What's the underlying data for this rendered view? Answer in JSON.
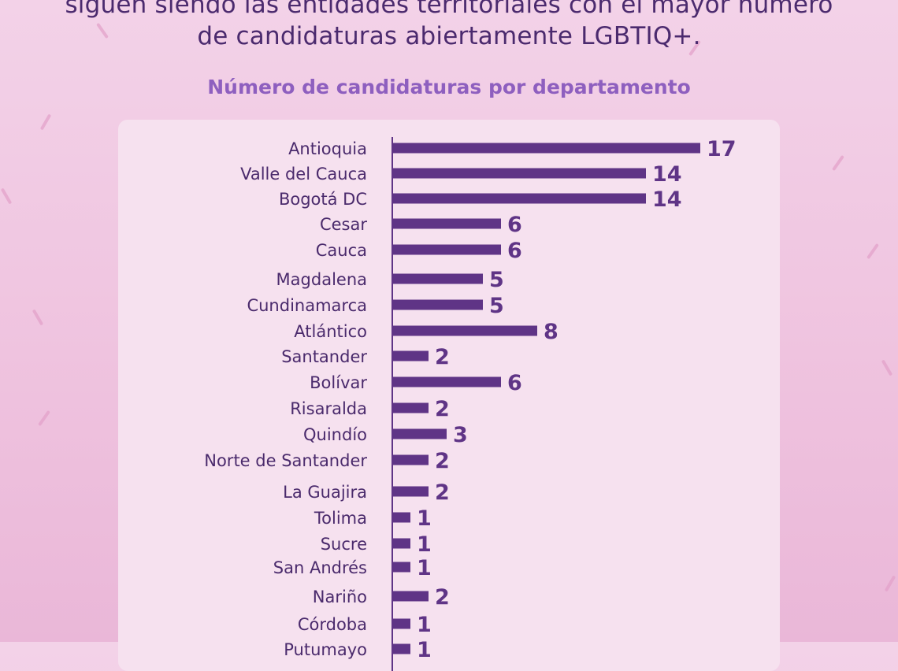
{
  "headline": {
    "line1": "siguen siendo las entidades territoriales con el mayor número",
    "line2": "de candidaturas abiertamente LGBTIQ+."
  },
  "colors": {
    "bar": "#5f3486",
    "label": "#4a2a6c",
    "value": "#5f3486",
    "subtitle": "#8e5fbf",
    "panel": "#f6e1ef"
  },
  "chart_data": {
    "type": "bar",
    "orientation": "horizontal",
    "title": "Número de candidaturas por departamento",
    "categories": [
      "Antioquia",
      "Valle del Cauca",
      "Bogotá DC",
      "Cesar",
      "Cauca",
      "Magdalena",
      "Cundinamarca",
      "Atlántico",
      "Santander",
      "Bolívar",
      "Risaralda",
      "Quindío",
      "Norte de Santander",
      "La Guajira",
      "Tolima",
      "Sucre",
      "San Andrés",
      "Nariño",
      "Córdoba",
      "Putumayo"
    ],
    "values": [
      17,
      14,
      14,
      6,
      6,
      5,
      5,
      8,
      2,
      6,
      2,
      3,
      2,
      2,
      1,
      1,
      1,
      2,
      1,
      1
    ],
    "xlim": [
      0,
      17
    ],
    "grid": false,
    "legend": "none"
  }
}
